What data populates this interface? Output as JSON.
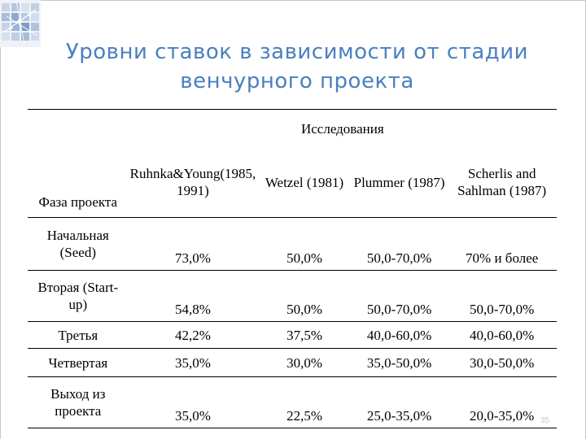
{
  "slide": {
    "title_line1": "Уровни ставок в зависимости от стадии",
    "title_line2": "венчурного проекта",
    "page_number": "35",
    "accent_color": "#4a7fc1",
    "logo_icon": "network-logo-icon"
  },
  "table": {
    "phase_header": "Фаза проекта",
    "research_header": "Исследования",
    "columns": [
      "Ruhnka&Young(1985, 1991)",
      "Wetzel (1981)",
      "Plummer (1987)",
      "Scherlis and Sahlman (1987)"
    ],
    "rows": [
      {
        "phase": "Начальная (Seed)",
        "values": [
          "73,0%",
          "50,0%",
          "50,0-70,0%",
          "70% и более"
        ]
      },
      {
        "phase": "Вторая (Start-up)",
        "values": [
          "54,8%",
          "50,0%",
          "50,0-70,0%",
          "50,0-70,0%"
        ]
      },
      {
        "phase": "Третья",
        "values": [
          "42,2%",
          "37,5%",
          "40,0-60,0%",
          "40,0-60,0%"
        ]
      },
      {
        "phase": "Четвертая",
        "values": [
          "35,0%",
          "30,0%",
          "35,0-50,0%",
          "30,0-50,0%"
        ]
      },
      {
        "phase": "Выход из проекта",
        "values": [
          "35,0%",
          "22,5%",
          "25,0-35,0%",
          "20,0-35,0%"
        ]
      }
    ]
  }
}
